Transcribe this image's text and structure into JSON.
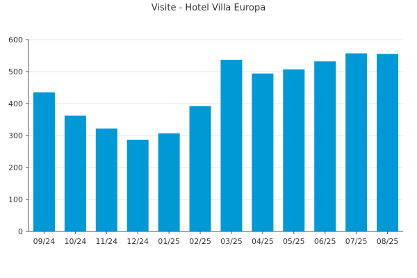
{
  "chart_data": {
    "type": "bar",
    "title": "Visite - Hotel Villa Europa",
    "xlabel": "",
    "ylabel": "",
    "categories": [
      "09/24",
      "10/24",
      "11/24",
      "12/24",
      "01/25",
      "02/25",
      "03/25",
      "04/25",
      "05/25",
      "06/25",
      "07/25",
      "08/25"
    ],
    "values": [
      435,
      362,
      322,
      287,
      307,
      392,
      537,
      494,
      507,
      532,
      557,
      555
    ],
    "ylim": [
      0,
      600
    ],
    "yticks": [
      0,
      100,
      200,
      300,
      400,
      500,
      600
    ],
    "grid": true,
    "legend": "none",
    "bar_color": "#0099d8"
  }
}
